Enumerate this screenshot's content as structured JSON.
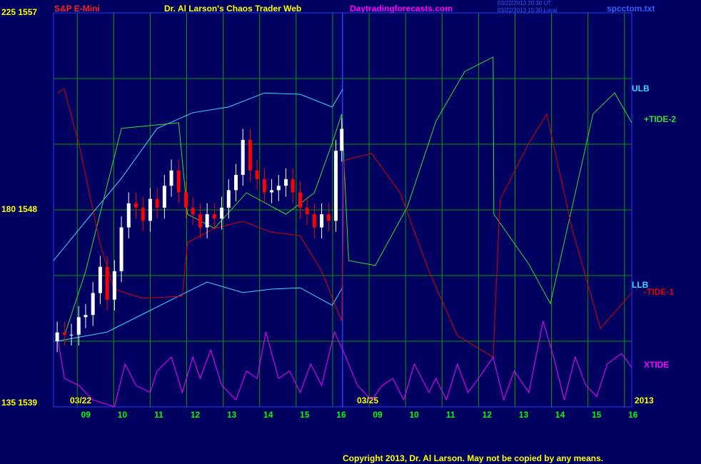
{
  "chart_data": {
    "type": "candlestick",
    "symbol": "S&P E-Mini",
    "title": "Dr. Al Larson's Chaos Trader Web",
    "site": "Daytradingforecasts.com",
    "time_ut": "03/22/2013 20:30 UT",
    "time_local": "03/22/2013 15:30 Local",
    "file": "spcctom.txt",
    "copyright": "Copyright 2013, Dr. Al Larson. May not be copied by any means.",
    "dates": [
      "03/22",
      "03/25"
    ],
    "year": "2013",
    "xlim": [
      8.35,
      24.2
    ],
    "xticks": [
      {
        "value": 9,
        "label": "09"
      },
      10,
      11,
      12,
      13,
      14,
      15,
      16,
      {
        "value": 17,
        "label": "09"
      },
      {
        "value": 18,
        "label": "10"
      },
      {
        "value": 19,
        "label": "11"
      },
      {
        "value": 20,
        "label": "12"
      },
      {
        "value": 21,
        "label": "13"
      },
      {
        "value": 22,
        "label": "14"
      },
      {
        "value": 23,
        "label": "15"
      },
      {
        "value": 24,
        "label": "16"
      }
    ],
    "ylim": [
      135,
      225
    ],
    "yticks": [
      {
        "value": 225,
        "label": "225 1557"
      },
      {
        "value": 180,
        "label": "180 1548"
      },
      {
        "value": 135,
        "label": "135 1539"
      }
    ],
    "ygrid": [
      150,
      165,
      180,
      195,
      210
    ],
    "y2lim": [
      1539,
      1557
    ],
    "grid": true,
    "grid_color": "#00a000",
    "now_line": 16.27,
    "candles": {
      "axis": "y2",
      "up_color": "#ffffff",
      "down_color": "#ff0000",
      "x": [
        8.45,
        8.65,
        8.84,
        9.04,
        9.23,
        9.43,
        9.63,
        9.82,
        10.02,
        10.21,
        10.41,
        10.61,
        10.8,
        11.0,
        11.19,
        11.39,
        11.58,
        11.78,
        11.98,
        12.17,
        12.37,
        12.56,
        12.76,
        12.96,
        13.15,
        13.35,
        13.54,
        13.74,
        13.93,
        14.13,
        14.33,
        14.52,
        14.72,
        14.91,
        15.11,
        15.3,
        15.5,
        15.7,
        15.89,
        16.09,
        16.25
      ],
      "open": [
        1542.0,
        1542.4,
        1542.3,
        1542.3,
        1543.1,
        1543.2,
        1544.2,
        1545.4,
        1543.9,
        1545.2,
        1547.2,
        1548.3,
        1548.1,
        1547.5,
        1548.5,
        1548.1,
        1549.1,
        1549.8,
        1548.8,
        1548.1,
        1547.8,
        1547.2,
        1547.8,
        1547.6,
        1548.1,
        1548.9,
        1549.6,
        1551.2,
        1549.8,
        1549.4,
        1548.8,
        1548.9,
        1549.1,
        1549.4,
        1548.8,
        1548.1,
        1547.8,
        1547.2,
        1547.8,
        1547.5,
        1550.7
      ],
      "high": [
        1542.9,
        1542.9,
        1542.8,
        1543.6,
        1543.7,
        1544.7,
        1545.9,
        1545.9,
        1545.7,
        1547.7,
        1548.8,
        1548.8,
        1548.6,
        1549.0,
        1549.0,
        1549.6,
        1550.3,
        1550.3,
        1549.3,
        1548.6,
        1548.3,
        1548.3,
        1548.3,
        1548.6,
        1549.4,
        1550.1,
        1551.7,
        1551.7,
        1550.3,
        1549.9,
        1549.4,
        1549.6,
        1549.9,
        1549.9,
        1549.3,
        1548.6,
        1548.3,
        1548.3,
        1548.3,
        1551.2,
        1552.2
      ],
      "low": [
        1541.5,
        1541.8,
        1541.8,
        1541.8,
        1542.6,
        1542.7,
        1543.7,
        1543.4,
        1543.4,
        1544.7,
        1546.7,
        1547.6,
        1547.0,
        1547.0,
        1547.6,
        1547.6,
        1548.6,
        1548.3,
        1547.6,
        1547.3,
        1546.7,
        1546.7,
        1547.1,
        1547.1,
        1547.6,
        1548.4,
        1549.1,
        1549.3,
        1548.9,
        1548.3,
        1548.3,
        1548.4,
        1548.6,
        1548.3,
        1547.6,
        1547.3,
        1546.7,
        1546.7,
        1547.0,
        1547.0,
        1550.2
      ],
      "close": [
        1542.4,
        1542.3,
        1542.3,
        1543.1,
        1543.2,
        1544.2,
        1545.4,
        1543.9,
        1545.2,
        1547.2,
        1548.3,
        1548.1,
        1547.5,
        1548.5,
        1548.1,
        1549.1,
        1549.8,
        1548.8,
        1548.1,
        1547.8,
        1547.2,
        1547.8,
        1547.6,
        1548.1,
        1548.9,
        1549.6,
        1551.2,
        1549.8,
        1549.4,
        1548.8,
        1548.9,
        1549.1,
        1549.4,
        1548.8,
        1548.1,
        1547.8,
        1547.2,
        1547.8,
        1547.5,
        1550.7,
        1551.7
      ]
    },
    "series": [
      {
        "name": "ULB",
        "color": "#40d8ff",
        "x": [
          8.35,
          9.23,
          10.21,
          11.19,
          12.17,
          13.15,
          14.13,
          15.11,
          15.99,
          16.28
        ],
        "values": [
          168.4,
          177.4,
          187.2,
          198.6,
          202.2,
          203.5,
          206.7,
          206.4,
          203.5,
          207.6
        ]
      },
      {
        "name": "+TIDE-2",
        "color": "#33e033",
        "x": [
          8.65,
          9.23,
          10.21,
          11.78,
          12.02,
          12.76,
          13.64,
          14.72,
          15.5,
          15.99,
          16.25,
          16.44,
          17.17,
          18.05,
          18.83,
          19.62,
          20.4,
          20.42,
          21.38,
          21.97,
          23.14,
          23.73,
          24.2
        ],
        "values": [
          151.3,
          166.0,
          198.6,
          199.9,
          179.0,
          175.8,
          183.9,
          179.0,
          183.9,
          195.3,
          201.9,
          168.4,
          167.3,
          180.7,
          200.2,
          211.6,
          214.9,
          179.0,
          167.6,
          158.6,
          201.9,
          206.7,
          199.9
        ]
      },
      {
        "name": "LLB",
        "color": "#40d8ff",
        "x": [
          8.45,
          9.82,
          10.8,
          11.78,
          12.56,
          13.54,
          14.32,
          15.11,
          15.99,
          16.28
        ],
        "values": [
          150.0,
          152.1,
          156.2,
          160.3,
          163.5,
          161.1,
          161.9,
          162.2,
          158.2,
          162.4
        ]
      },
      {
        "name": "-TIDE-1",
        "color": "#e00000",
        "x": [
          8.45,
          8.64,
          9.04,
          9.62,
          10.01,
          10.8,
          11.88,
          12.02,
          12.76,
          13.54,
          14.32,
          15.11,
          15.7,
          16.25,
          16.32,
          17.07,
          17.85,
          18.64,
          19.42,
          20.4,
          20.59,
          21.38,
          21.87,
          22.56,
          23.34,
          24.2
        ],
        "values": [
          206.7,
          207.6,
          195.3,
          172.5,
          161.9,
          159.8,
          160.3,
          172.5,
          175.8,
          177.4,
          174.9,
          174.1,
          166.0,
          154.6,
          191.3,
          192.9,
          183.9,
          166.0,
          151.3,
          146.4,
          182.3,
          195.3,
          201.9,
          175.8,
          152.9,
          161.1
        ]
      },
      {
        "name": "XTIDE",
        "color": "#ff00ff",
        "x": [
          8.45,
          8.65,
          9.04,
          9.43,
          10.02,
          10.31,
          10.61,
          11.0,
          11.19,
          11.58,
          11.88,
          12.17,
          12.37,
          12.66,
          12.96,
          13.35,
          13.64,
          13.93,
          14.17,
          14.52,
          14.82,
          15.11,
          15.4,
          15.7,
          16.05,
          16.28,
          16.68,
          17.07,
          17.36,
          17.65,
          17.95,
          18.24,
          18.64,
          18.83,
          19.12,
          19.42,
          19.71,
          20.0,
          20.4,
          20.69,
          20.98,
          21.38,
          21.77,
          22.06,
          22.35,
          22.65,
          22.94,
          23.24,
          23.53,
          23.92,
          24.2
        ],
        "values": [
          151.3,
          141.5,
          139.9,
          136.6,
          135.0,
          144.8,
          139.9,
          138.3,
          143.2,
          146.4,
          138.3,
          146.4,
          141.5,
          148.0,
          139.9,
          136.6,
          143.2,
          141.5,
          152.1,
          141.5,
          143.2,
          138.3,
          144.8,
          139.9,
          152.1,
          148.0,
          139.9,
          136.6,
          139.9,
          141.5,
          136.6,
          144.8,
          138.3,
          141.5,
          136.6,
          144.8,
          138.3,
          141.5,
          146.4,
          136.6,
          143.2,
          138.3,
          154.6,
          146.4,
          136.6,
          146.4,
          139.9,
          137.4,
          144.8,
          147.2,
          144.0
        ]
      }
    ]
  }
}
